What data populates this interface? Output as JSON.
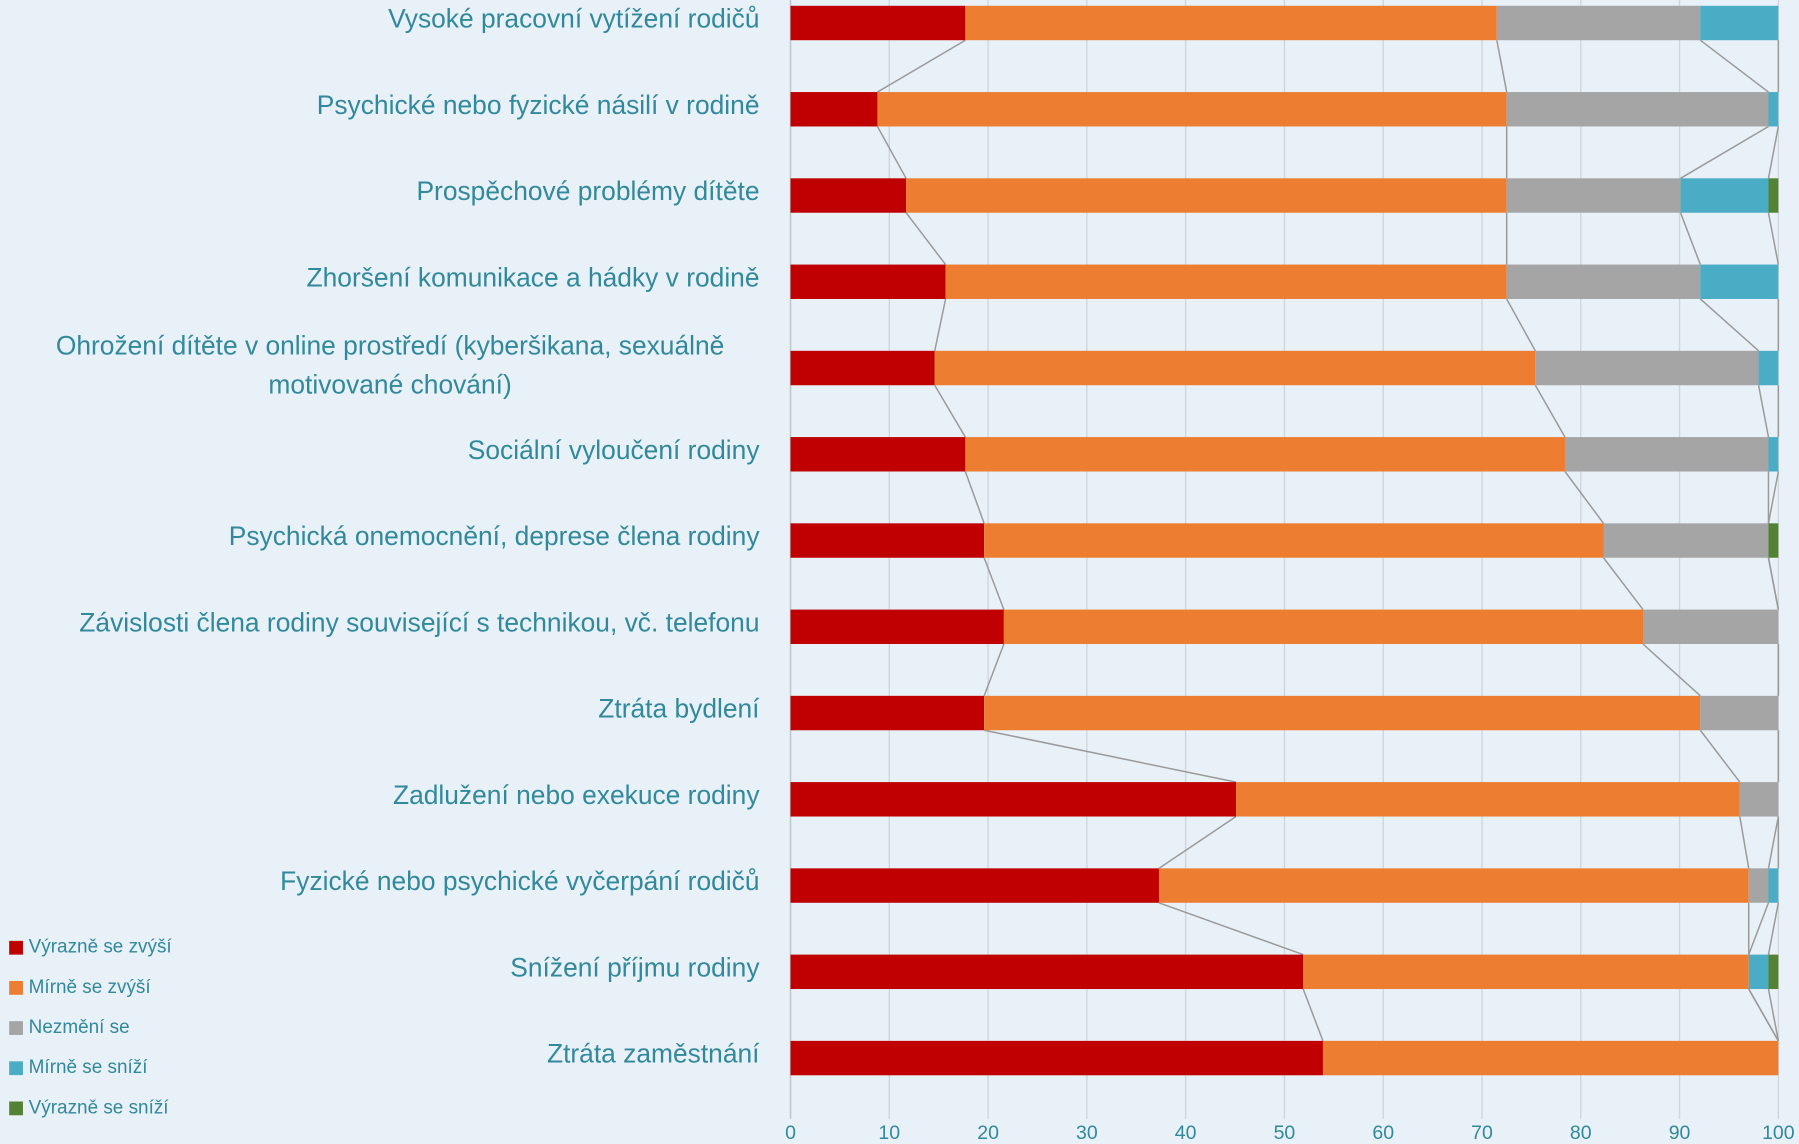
{
  "chart_data": {
    "type": "bar",
    "orientation": "horizontal",
    "stacked": true,
    "categories": [
      "Vysoké pracovní vytížení rodičů",
      "Psychické nebo fyzické násilí v rodině",
      "Prospěchové problémy dítěte",
      "Zhoršení komunikace a hádky v rodině",
      "Ohrožení dítěte v online prostředí (kyberšikana, sexuálně\nmotivované chování)",
      "Sociální vyloučení rodiny",
      "Psychická onemocnění, deprese člena rodiny",
      "Závislosti člena rodiny související s technikou, vč. telefonu",
      "Ztráta bydlení",
      "Zadlužení nebo exekuce rodiny",
      "Fyzické nebo psychické vyčerpání rodičů",
      "Snížení příjmu rodiny",
      "Ztráta zaměstnání"
    ],
    "series": [
      {
        "name": "Výrazně se zvýší",
        "color": "#c00000",
        "values": [
          17.7,
          8.8,
          11.7,
          15.7,
          14.6,
          17.7,
          19.6,
          21.6,
          19.6,
          45.1,
          37.3,
          51.9,
          53.9
        ]
      },
      {
        "name": "Mírně se zvýší",
        "color": "#ed7d31",
        "values": [
          53.8,
          63.7,
          60.8,
          56.8,
          60.8,
          60.7,
          62.7,
          64.7,
          72.5,
          51.0,
          59.7,
          45.1,
          46.1
        ]
      },
      {
        "name": "Nezmění se",
        "color": "#a5a5a5",
        "values": [
          20.6,
          26.5,
          17.6,
          19.6,
          22.6,
          20.6,
          16.7,
          13.7,
          7.9,
          3.9,
          2.0,
          0,
          0
        ]
      },
      {
        "name": "Mírně se sníží",
        "color": "#4bacc6",
        "values": [
          7.9,
          1.0,
          8.9,
          7.9,
          2.0,
          1.0,
          0,
          0,
          0,
          0,
          1.0,
          2.0,
          0
        ]
      },
      {
        "name": "Výrazně se sníží",
        "color": "#548235",
        "values": [
          0,
          0,
          1.0,
          0,
          0,
          0,
          1.0,
          0,
          0,
          0,
          0,
          1.0,
          0
        ]
      }
    ],
    "xlim": [
      0,
      100
    ],
    "xticks": [
      0,
      10,
      20,
      30,
      40,
      50,
      60,
      70,
      80,
      90,
      100
    ],
    "grid": true,
    "series_lines": true,
    "legend": "bottom-left"
  }
}
